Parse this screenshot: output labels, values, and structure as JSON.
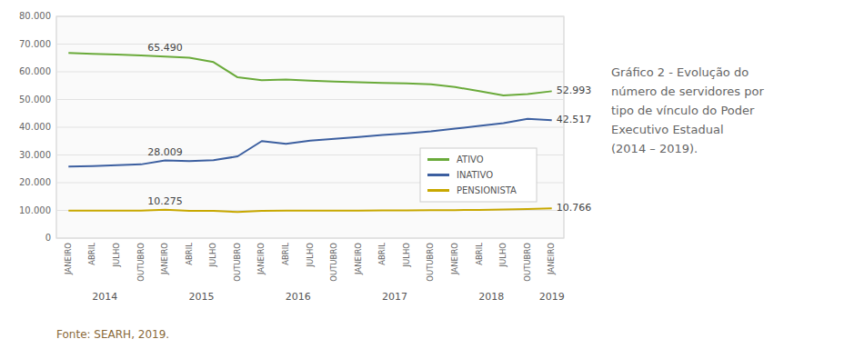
{
  "chart_data": {
    "type": "line",
    "categories": [
      "JANEIRO",
      "ABRIL",
      "JULHO",
      "OUTUBRO",
      "JANEIRO",
      "ABRIL",
      "JULHO",
      "OUTUBRO",
      "JANEIRO",
      "ABRIL",
      "JULHO",
      "OUTUBRO",
      "JANEIRO",
      "ABRIL",
      "JULHO",
      "OUTUBRO",
      "JANEIRO",
      "ABRIL",
      "JULHO",
      "OUTUBRO",
      "JANEIRO"
    ],
    "series": [
      {
        "name": "ATIVO",
        "color": "#6aaa3a",
        "values": [
          66800,
          66500,
          66200,
          65900,
          65490,
          65100,
          63500,
          58000,
          57000,
          57200,
          56800,
          56500,
          56200,
          56000,
          55800,
          55500,
          54500,
          53000,
          51500,
          52000,
          52993
        ]
      },
      {
        "name": "INATIVO",
        "color": "#3c5fa0",
        "values": [
          25800,
          26000,
          26300,
          26600,
          28009,
          27800,
          28100,
          29500,
          35000,
          34000,
          35200,
          35800,
          36500,
          37200,
          37800,
          38500,
          39500,
          40500,
          41500,
          43000,
          42517
        ]
      },
      {
        "name": "PENSIONISTA",
        "color": "#c8a800",
        "values": [
          9900,
          9950,
          9950,
          9950,
          10275,
          9850,
          9800,
          9400,
          9800,
          9900,
          9900,
          9900,
          9950,
          10000,
          10000,
          10100,
          10100,
          10200,
          10300,
          10500,
          10766
        ]
      }
    ],
    "ylim": [
      0,
      80000
    ],
    "yticks": [
      0,
      {
        "value": 10000,
        "label": "10.000"
      },
      {
        "value": 20000,
        "label": "20.000"
      },
      {
        "value": 30000,
        "label": "30.000"
      },
      {
        "value": 40000,
        "label": "40.000"
      },
      {
        "value": 50000,
        "label": "50.000"
      },
      {
        "value": 60000,
        "label": "60.000"
      },
      {
        "value": 70000,
        "label": "70.000"
      },
      {
        "value": 80000,
        "label": "80.000"
      }
    ],
    "grid": true,
    "legend": "lower right",
    "year_labels": [
      {
        "label": "2014",
        "x": 1.5
      },
      {
        "label": "2015",
        "x": 5.5
      },
      {
        "label": "2016",
        "x": 9.5
      },
      {
        "label": "2017",
        "x": 13.5
      },
      {
        "label": "2018",
        "x": 17.5
      },
      {
        "label": "2019",
        "x": 20.0
      }
    ],
    "annotations": [
      {
        "label": "65.490",
        "x": 4,
        "value": 65490,
        "position": "above"
      },
      {
        "label": "52.993",
        "x": 20,
        "value": 52993,
        "position": "right"
      },
      {
        "label": "28.009",
        "x": 4,
        "value": 28009,
        "position": "above"
      },
      {
        "label": "42.517",
        "x": 20,
        "value": 42517,
        "position": "right"
      },
      {
        "label": "10.275",
        "x": 4,
        "value": 10275,
        "position": "above"
      },
      {
        "label": "10.766",
        "x": 20,
        "value": 10766,
        "position": "right"
      }
    ],
    "caption": "Gráfico 2 - Evolução do\nnúmero de servidores por\ntipo de vínculo do Poder\nExecutivo Estadual\n(2014 – 2019).",
    "source": "Fonte: SEARH, 2019."
  }
}
